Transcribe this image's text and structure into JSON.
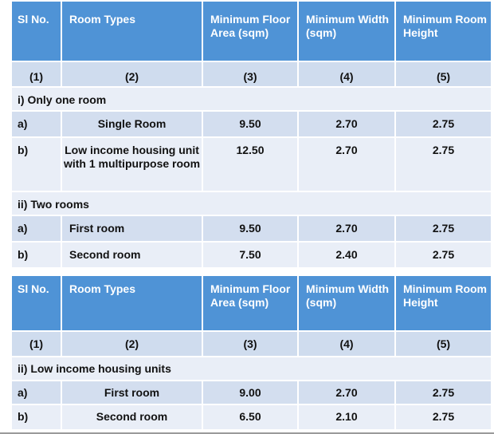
{
  "table1": {
    "headers": [
      "Sl No.",
      "Room Types",
      "Minimum Floor Area (sqm)",
      "Minimum Width (sqm)",
      "Minimum Room Height"
    ],
    "column_numbers": [
      "(1)",
      "(2)",
      "(3)",
      "(4)",
      "(5)"
    ],
    "section1": "i) Only one room",
    "section1_rows": [
      {
        "sl": "a)",
        "type": "Single Room",
        "area": "9.50",
        "width": "2.70",
        "height": "2.75"
      },
      {
        "sl": "b)",
        "type": "Low income housing unit with 1 multipurpose room",
        "area": "12.50",
        "width": "2.70",
        "height": "2.75"
      }
    ],
    "section2": "ii) Two rooms",
    "section2_rows": [
      {
        "sl": "a)",
        "type": "First room",
        "area": "9.50",
        "width": "2.70",
        "height": "2.75"
      },
      {
        "sl": "b)",
        "type": "Second room",
        "area": "7.50",
        "width": "2.40",
        "height": "2.75"
      }
    ]
  },
  "table2": {
    "headers": [
      "Sl No.",
      "Room Types",
      "Minimum Floor Area (sqm)",
      "Minimum Width (sqm)",
      "Minimum Room Height"
    ],
    "column_numbers": [
      "(1)",
      "(2)",
      "(3)",
      "(4)",
      "(5)"
    ],
    "section1": "ii) Low income housing units",
    "section1_rows": [
      {
        "sl": "a)",
        "type": "First room",
        "area": "9.00",
        "width": "2.70",
        "height": "2.75"
      },
      {
        "sl": "b)",
        "type": "Second room",
        "area": "6.50",
        "width": "2.10",
        "height": "2.75"
      }
    ]
  },
  "colors": {
    "header_bg": "#4f93d6",
    "header_text": "#ffffff",
    "numbers_row_bg": "#cfdcee",
    "row_light": "#e9eef7",
    "row_alt": "#d3deef"
  }
}
